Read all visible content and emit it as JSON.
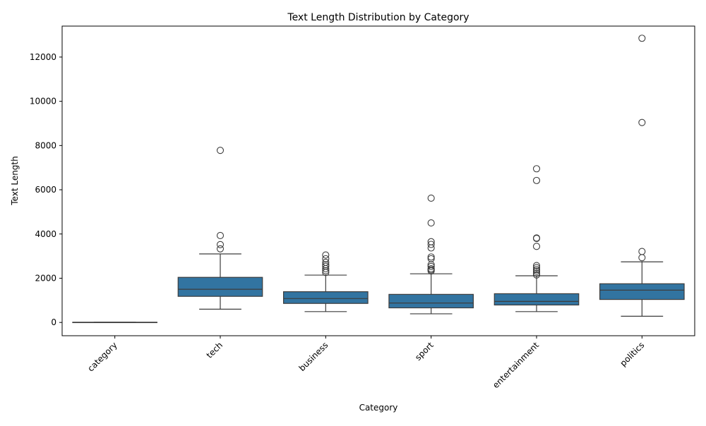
{
  "chart_data": {
    "type": "box",
    "title": "Text Length Distribution by Category",
    "xlabel": "Category",
    "ylabel": "Text Length",
    "ylim": [
      -600,
      13400
    ],
    "yticks": [
      0,
      2000,
      4000,
      6000,
      8000,
      10000,
      12000
    ],
    "ytick_labels": [
      "0",
      "2000",
      "4000",
      "6000",
      "8000",
      "10000",
      "12000"
    ],
    "categories": [
      "category",
      "tech",
      "business",
      "sport",
      "entertainment",
      "politics"
    ],
    "boxes": [
      {
        "category": "category",
        "whislo": 8,
        "q1": 8,
        "med": 8,
        "q3": 8,
        "whishi": 8,
        "fliers": []
      },
      {
        "category": "tech",
        "whislo": 600,
        "q1": 1180,
        "med": 1500,
        "q3": 2040,
        "whishi": 3100,
        "fliers": [
          7780,
          3930,
          3520,
          3330
        ]
      },
      {
        "category": "business",
        "whislo": 490,
        "q1": 860,
        "med": 1080,
        "q3": 1390,
        "whishi": 2140,
        "fliers": [
          3050,
          2880,
          2720,
          2610,
          2540,
          2430,
          2340,
          2260
        ]
      },
      {
        "category": "sport",
        "whislo": 390,
        "q1": 660,
        "med": 880,
        "q3": 1270,
        "whishi": 2200,
        "fliers": [
          5620,
          4500,
          3650,
          3530,
          3370,
          2960,
          2880,
          2610,
          2530,
          2430,
          2380,
          2330
        ]
      },
      {
        "category": "entertainment",
        "whislo": 490,
        "q1": 790,
        "med": 950,
        "q3": 1300,
        "whishi": 2110,
        "fliers": [
          6950,
          6420,
          3820,
          3800,
          3440,
          2570,
          2480,
          2390,
          2320,
          2230,
          2150
        ]
      },
      {
        "category": "politics",
        "whislo": 280,
        "q1": 1040,
        "med": 1460,
        "q3": 1750,
        "whishi": 2740,
        "fliers": [
          12850,
          9040,
          3210,
          2930
        ]
      }
    ],
    "box_color": "#3274a1",
    "line_color": "#3d3d3d",
    "grid": false,
    "legend": "none"
  }
}
